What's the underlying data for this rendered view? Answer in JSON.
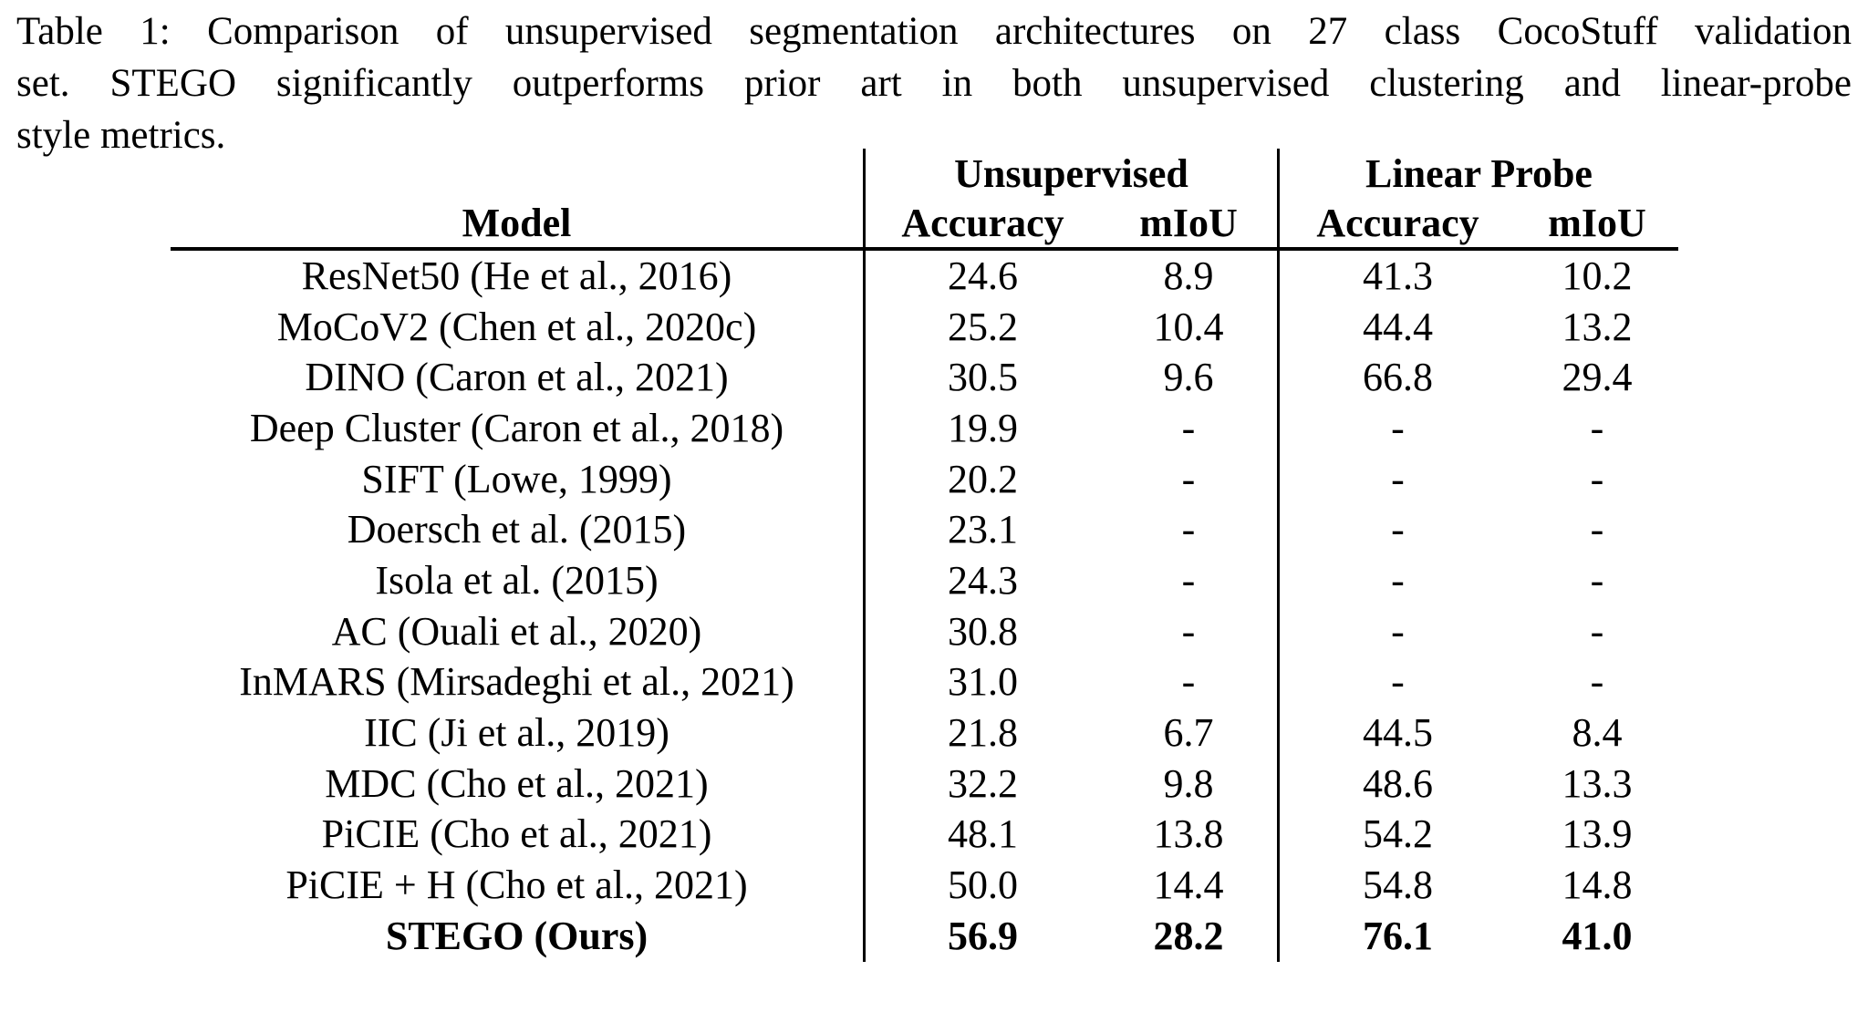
{
  "caption": {
    "lines": [
      "Table 1: Comparison of unsupervised segmentation architectures on 27 class CocoStuff validation",
      "set.  STEGO significantly outperforms prior art in both unsupervised clustering and linear-probe",
      "style metrics."
    ]
  },
  "table": {
    "group_headers": {
      "unsupervised": "Unsupervised",
      "linear_probe": "Linear Probe"
    },
    "column_headers": {
      "model": "Model",
      "unsup_accuracy": "Accuracy",
      "unsup_miou": "mIoU",
      "lp_accuracy": "Accuracy",
      "lp_miou": "mIoU"
    },
    "rows": [
      {
        "model": "ResNet50 (He et al., 2016)",
        "unsup_accuracy": "24.6",
        "unsup_miou": "8.9",
        "lp_accuracy": "41.3",
        "lp_miou": "10.2",
        "bold": false
      },
      {
        "model": "MoCoV2 (Chen et al., 2020c)",
        "unsup_accuracy": "25.2",
        "unsup_miou": "10.4",
        "lp_accuracy": "44.4",
        "lp_miou": "13.2",
        "bold": false
      },
      {
        "model": "DINO (Caron et al., 2021)",
        "unsup_accuracy": "30.5",
        "unsup_miou": "9.6",
        "lp_accuracy": "66.8",
        "lp_miou": "29.4",
        "bold": false
      },
      {
        "model": "Deep Cluster (Caron et al., 2018)",
        "unsup_accuracy": "19.9",
        "unsup_miou": "-",
        "lp_accuracy": "-",
        "lp_miou": "-",
        "bold": false
      },
      {
        "model": "SIFT (Lowe, 1999)",
        "unsup_accuracy": "20.2",
        "unsup_miou": "-",
        "lp_accuracy": "-",
        "lp_miou": "-",
        "bold": false
      },
      {
        "model": "Doersch et al. (2015)",
        "unsup_accuracy": "23.1",
        "unsup_miou": "-",
        "lp_accuracy": "-",
        "lp_miou": "-",
        "bold": false
      },
      {
        "model": "Isola et al. (2015)",
        "unsup_accuracy": "24.3",
        "unsup_miou": "-",
        "lp_accuracy": "-",
        "lp_miou": "-",
        "bold": false
      },
      {
        "model": "AC (Ouali et al., 2020)",
        "unsup_accuracy": "30.8",
        "unsup_miou": "-",
        "lp_accuracy": "-",
        "lp_miou": "-",
        "bold": false
      },
      {
        "model": "InMARS (Mirsadeghi et al., 2021)",
        "unsup_accuracy": "31.0",
        "unsup_miou": "-",
        "lp_accuracy": "-",
        "lp_miou": "-",
        "bold": false
      },
      {
        "model": "IIC (Ji et al., 2019)",
        "unsup_accuracy": "21.8",
        "unsup_miou": "6.7",
        "lp_accuracy": "44.5",
        "lp_miou": "8.4",
        "bold": false
      },
      {
        "model": "MDC (Cho et al., 2021)",
        "unsup_accuracy": "32.2",
        "unsup_miou": "9.8",
        "lp_accuracy": "48.6",
        "lp_miou": "13.3",
        "bold": false
      },
      {
        "model": "PiCIE (Cho et al., 2021)",
        "unsup_accuracy": "48.1",
        "unsup_miou": "13.8",
        "lp_accuracy": "54.2",
        "lp_miou": "13.9",
        "bold": false
      },
      {
        "model": "PiCIE + H (Cho et al., 2021)",
        "unsup_accuracy": "50.0",
        "unsup_miou": "14.4",
        "lp_accuracy": "54.8",
        "lp_miou": "14.8",
        "bold": false
      },
      {
        "model": "STEGO (Ours)",
        "unsup_accuracy": "56.9",
        "unsup_miou": "28.2",
        "lp_accuracy": "76.1",
        "lp_miou": "41.0",
        "bold": true
      }
    ]
  },
  "colors": {
    "text": "#000000",
    "background": "#ffffff",
    "rule": "#000000"
  }
}
